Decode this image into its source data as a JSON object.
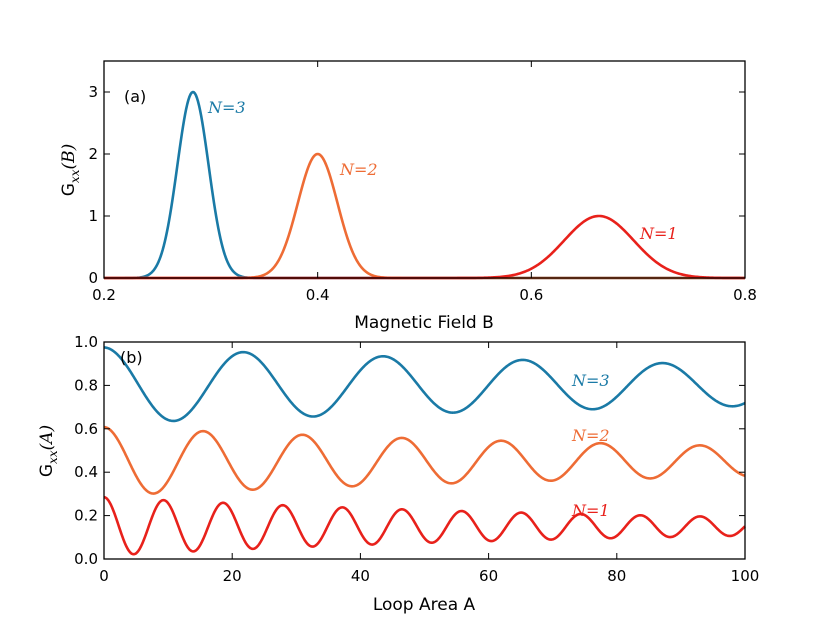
{
  "chart_data": [
    {
      "panel": "(a)",
      "type": "line",
      "title": "",
      "xlabel": "Magnetic Field B",
      "ylabel": "G_xx(B)",
      "ylabel_main": "G",
      "ylabel_sub": "xx",
      "ylabel_arg": "(B)",
      "xlim": [
        0.2,
        0.8
      ],
      "ylim": [
        0,
        3.5
      ],
      "xticks": [
        0.2,
        0.4,
        0.6,
        0.8
      ],
      "xtick_labels": [
        "0.2",
        "0.4",
        "0.6",
        "0.8"
      ],
      "yticks": [
        0,
        1,
        2,
        3
      ],
      "ytick_labels": [
        "0",
        "1",
        "2",
        "3"
      ],
      "grid": false,
      "series": [
        {
          "name": "N=3",
          "label": "N=3",
          "color": "#1a7aa6",
          "model": "gaussian",
          "peak_x": 0.2833,
          "peak_y": 3.0,
          "width": 0.0146
        },
        {
          "name": "N=2",
          "label": "N=2",
          "color": "#ee6c35",
          "model": "gaussian",
          "peak_x": 0.4,
          "peak_y": 2.0,
          "width": 0.0185
        },
        {
          "name": "N=1",
          "label": "N=1",
          "color": "#e8211b",
          "model": "gaussian",
          "peak_x": 0.6633,
          "peak_y": 1.0,
          "width": 0.0325
        }
      ]
    },
    {
      "panel": "(b)",
      "type": "line",
      "title": "",
      "xlabel": "Loop Area A",
      "ylabel": "G_xx(A)",
      "ylabel_main": "G",
      "ylabel_sub": "xx",
      "ylabel_arg": "(A)",
      "xlim": [
        0,
        100
      ],
      "ylim": [
        0,
        1.0
      ],
      "xticks": [
        0,
        20,
        40,
        60,
        80,
        100
      ],
      "xtick_labels": [
        "0",
        "20",
        "40",
        "60",
        "80",
        "100"
      ],
      "yticks": [
        0,
        0.2,
        0.4,
        0.6,
        0.8,
        1.0
      ],
      "ytick_labels": [
        "0.0",
        "0.2",
        "0.4",
        "0.6",
        "0.8",
        "1.0"
      ],
      "grid": false,
      "series": [
        {
          "name": "N=3",
          "label": "N=3",
          "color": "#1a7aa6",
          "model": "damped_cosine",
          "offset": 0.8,
          "amplitude": 0.175,
          "decay": 0.0061,
          "period": 21.8
        },
        {
          "name": "N=2",
          "label": "N=2",
          "color": "#ee6c35",
          "model": "damped_cosine",
          "offset": 0.45,
          "amplitude": 0.158,
          "decay": 0.0082,
          "period": 15.5
        },
        {
          "name": "N=1",
          "label": "N=1",
          "color": "#e8211b",
          "model": "damped_cosine",
          "offset": 0.15,
          "amplitude": 0.135,
          "decay": 0.0115,
          "period": 9.3
        }
      ]
    }
  ]
}
